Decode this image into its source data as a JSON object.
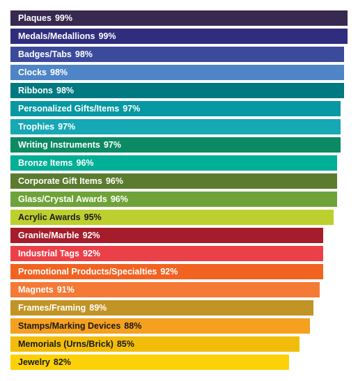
{
  "chart_data": {
    "type": "bar",
    "orientation": "horizontal",
    "categories": [
      "Plaques",
      "Medals/Medallions",
      "Badges/Tabs",
      "Clocks",
      "Ribbons",
      "Personalized Gifts/Items",
      "Trophies",
      "Writing Instruments",
      "Bronze Items",
      "Corporate Gift Items",
      "Glass/Crystal Awards",
      "Acrylic Awards",
      "Granite/Marble",
      "Industrial Tags",
      "Promotional Products/Specialties",
      "Magnets",
      "Frames/Framing",
      "Stamps/Marking Devices",
      "Memorials (Urns/Brick)",
      "Jewelry"
    ],
    "values": [
      99,
      99,
      98,
      98,
      98,
      97,
      97,
      97,
      96,
      96,
      96,
      95,
      92,
      92,
      92,
      91,
      89,
      88,
      85,
      82
    ],
    "value_labels": [
      "99%",
      "99%",
      "98%",
      "98%",
      "98%",
      "97%",
      "97%",
      "97%",
      "96%",
      "96%",
      "96%",
      "95%",
      "92%",
      "92%",
      "92%",
      "91%",
      "89%",
      "88%",
      "85%",
      "82%"
    ],
    "colors": [
      "#37294f",
      "#2f2e7e",
      "#3c4a9c",
      "#4f85c6",
      "#007a80",
      "#0798a3",
      "#16a8b4",
      "#0c8a63",
      "#00af95",
      "#5b7b2e",
      "#6ea339",
      "#bdcf2f",
      "#a51c2a",
      "#ec4049",
      "#f26322",
      "#f47a36",
      "#c29325",
      "#f5a01e",
      "#f1bd0a",
      "#fcd108"
    ],
    "label_colors": [
      "#ffffff",
      "#ffffff",
      "#ffffff",
      "#ffffff",
      "#ffffff",
      "#ffffff",
      "#ffffff",
      "#ffffff",
      "#ffffff",
      "#ffffff",
      "#ffffff",
      "#1a1a1a",
      "#ffffff",
      "#ffffff",
      "#ffffff",
      "#ffffff",
      "#ffffff",
      "#1a1a1a",
      "#1a1a1a",
      "#1a1a1a"
    ],
    "title": "",
    "xlabel": "",
    "ylabel": "",
    "xlim": [
      0,
      100
    ],
    "grid": false,
    "legend": false
  }
}
